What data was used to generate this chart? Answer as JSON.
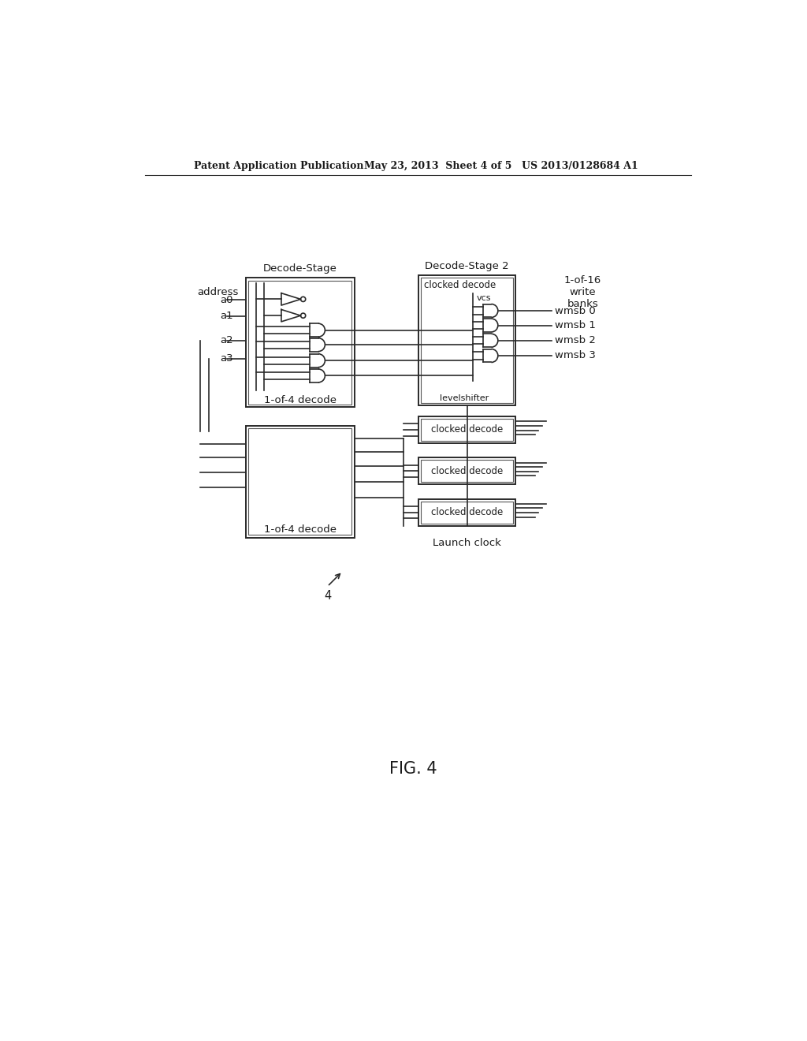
{
  "bg_color": "#ffffff",
  "header_left": "Patent Application Publication",
  "header_mid": "May 23, 2013  Sheet 4 of 5",
  "header_right": "US 2013/0128684 A1",
  "fig_label": "FIG. 4",
  "fig_number": "4",
  "address_label": "address",
  "decode_stage1_label": "Decode-Stage",
  "decode_stage2_label": "Decode-Stage 2",
  "banks_label": "1-of-16\nwrite\nbanks",
  "launch_clock_label": "Launch clock",
  "decode1_sublabel": "1-of-4 decode",
  "decode2_sublabel": "1-of-4 decode",
  "inputs": [
    "a0",
    "a1",
    "a2",
    "a3"
  ],
  "wmsb_labels": [
    "wmsb 0",
    "wmsb 1",
    "wmsb 2",
    "wmsb 3"
  ],
  "vcs_label": "vcs",
  "levelshifter_label": "levelshifter",
  "clocked_decode_label": "clocked decode",
  "line_color": "#2a2a2a",
  "text_color": "#1a1a1a"
}
